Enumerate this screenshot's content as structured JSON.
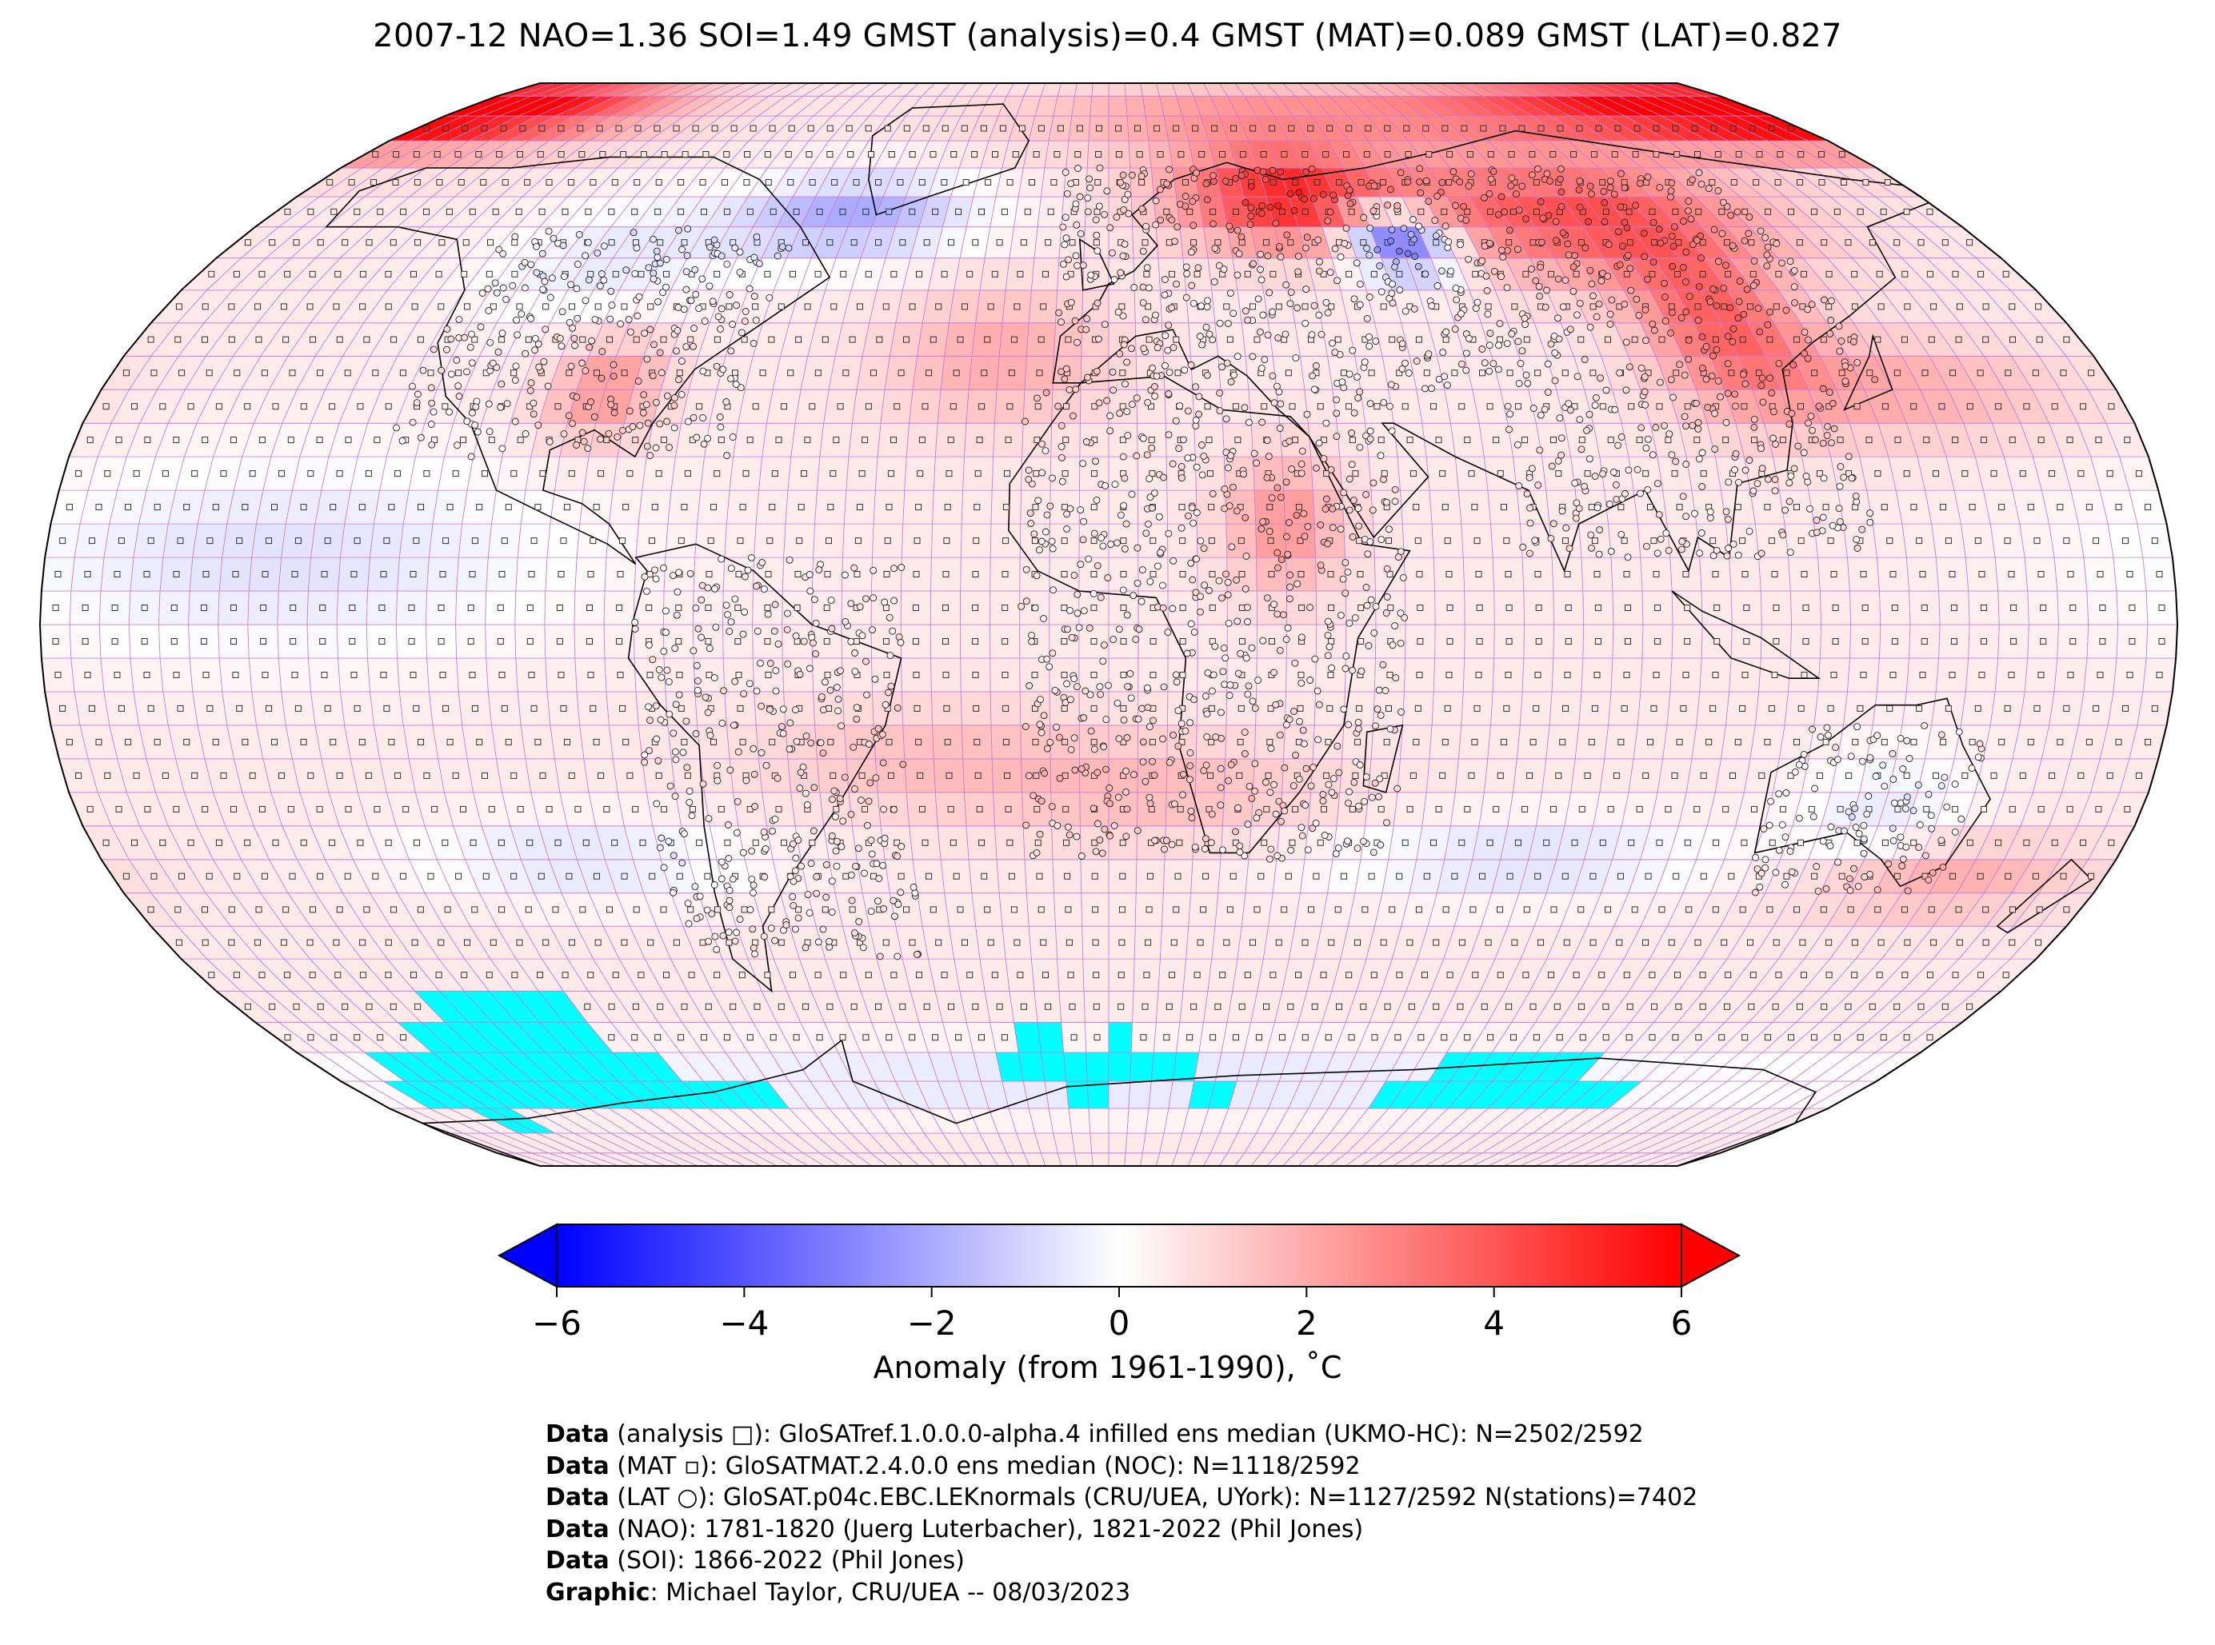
{
  "title": "2007-12 NAO=1.36 SOI=1.49 GMST (analysis)=0.4 GMST (MAT)=0.089 GMST (LAT)=0.827",
  "colorbar": {
    "label": "Anomaly (from 1961-1990), ˚C",
    "ticks": [
      "−6",
      "−4",
      "−2",
      "0",
      "2",
      "4",
      "6"
    ],
    "tick_values": [
      -6,
      -4,
      -2,
      0,
      2,
      4,
      6
    ],
    "range": [
      -6,
      6
    ],
    "extend": "both",
    "colormap": "bwr",
    "color_min": "#0000ff",
    "color_mid": "#ffffff",
    "color_max": "#ff0000"
  },
  "map": {
    "projection": "Robinson",
    "grid_resolution_deg": 5,
    "grid_color": "#c77bd6",
    "missing_color": "#00ffff",
    "coastline_color": "#000000",
    "symbols": {
      "analysis": "square",
      "MAT": "small-square",
      "LAT": "circle"
    }
  },
  "credits": [
    {
      "key": "Data",
      "text": " (analysis □): GloSATref.1.0.0.0-alpha.4 infilled ens median (UKMO-HC): N=2502/2592"
    },
    {
      "key": "Data",
      "text": " (MAT ▫): GloSATMAT.2.4.0.0 ens median (NOC): N=1118/2592"
    },
    {
      "key": "Data",
      "text": " (LAT ○): GloSAT.p04c.EBC.LEKnormals (CRU/UEA, UYork): N=1127/2592 N(stations)=7402"
    },
    {
      "key": "Data",
      "text": " (NAO): 1781-1820 (Juerg Luterbacher), 1821-2022 (Phil Jones)"
    },
    {
      "key": "Data",
      "text": " (SOI): 1866-2022 (Phil Jones)"
    },
    {
      "key": "Graphic",
      "text": ": Michael Taylor, CRU/UEA -- 08/03/2023"
    }
  ]
}
